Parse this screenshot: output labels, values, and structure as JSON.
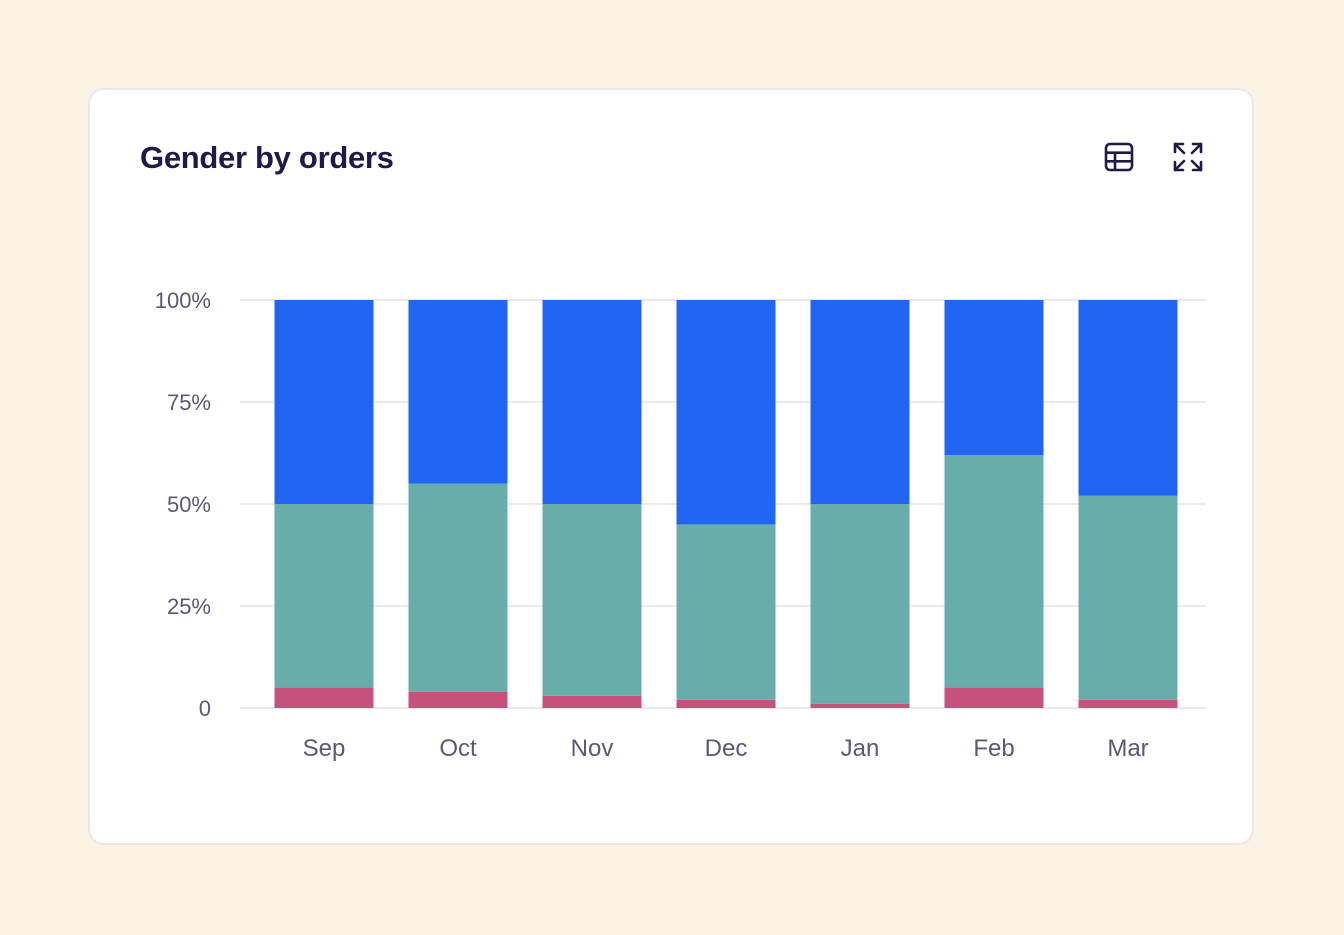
{
  "card": {
    "title": "Gender by orders",
    "icons": [
      "table-icon",
      "expand-icon"
    ]
  },
  "chart_data": {
    "type": "bar",
    "stacked": true,
    "title": "Gender by orders",
    "categories": [
      "Sep",
      "Oct",
      "Nov",
      "Dec",
      "Jan",
      "Feb",
      "Mar"
    ],
    "series": [
      {
        "color": "#c5517c",
        "values": [
          5,
          4,
          3,
          2,
          1,
          5,
          2
        ]
      },
      {
        "color": "#67ada9",
        "values": [
          45,
          51,
          47,
          43,
          49,
          57,
          50
        ]
      },
      {
        "color": "#2166f2",
        "values": [
          50,
          45,
          50,
          55,
          50,
          38,
          48
        ]
      }
    ],
    "yticks": [
      "0",
      "25%",
      "50%",
      "75%",
      "100%"
    ],
    "ylim": [
      0,
      100
    ],
    "grid": true,
    "legend": "none"
  }
}
